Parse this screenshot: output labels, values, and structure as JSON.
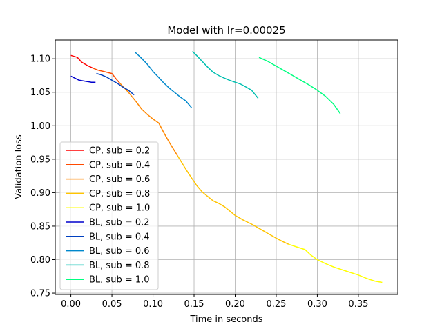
{
  "chart_data": {
    "type": "line",
    "title": "Model with lr=0.00025",
    "xlabel": "Time in seconds",
    "ylabel": "Validation loss",
    "xlim": [
      -0.019,
      0.398
    ],
    "ylim": [
      0.748,
      1.128
    ],
    "xticks": [
      0.0,
      0.05,
      0.1,
      0.15,
      0.2,
      0.25,
      0.3,
      0.35
    ],
    "xtick_labels": [
      "0.00",
      "0.05",
      "0.10",
      "0.15",
      "0.20",
      "0.25",
      "0.30",
      "0.35"
    ],
    "yticks": [
      0.75,
      0.8,
      0.85,
      0.9,
      0.95,
      1.0,
      1.05,
      1.1
    ],
    "ytick_labels": [
      "0.75",
      "0.80",
      "0.85",
      "0.90",
      "0.95",
      "1.00",
      "1.05",
      "1.10"
    ],
    "grid": true,
    "legend_position": "lower-left",
    "series": [
      {
        "name": "CP, sub = 0.2",
        "color": "#ff0000",
        "x": [
          0.0,
          0.008,
          0.013,
          0.02,
          0.027
        ],
        "y": [
          1.105,
          1.102,
          1.095,
          1.09,
          1.086
        ]
      },
      {
        "name": "CP, sub = 0.4",
        "color": "#ff4a00",
        "x": [
          0.027,
          0.033,
          0.04,
          0.05,
          0.055,
          0.06
        ],
        "y": [
          1.086,
          1.083,
          1.081,
          1.078,
          1.07,
          1.063
        ]
      },
      {
        "name": "CP, sub = 0.6",
        "color": "#ff8700",
        "x": [
          0.06,
          0.07,
          0.08,
          0.086,
          0.093,
          0.1,
          0.107,
          0.113,
          0.12,
          0.13
        ],
        "y": [
          1.063,
          1.05,
          1.035,
          1.025,
          1.017,
          1.01,
          1.004,
          0.99,
          0.975,
          0.955
        ]
      },
      {
        "name": "CP, sub = 0.8",
        "color": "#ffc400",
        "x": [
          0.13,
          0.14,
          0.147,
          0.153,
          0.16,
          0.167,
          0.173,
          0.18,
          0.187,
          0.193,
          0.2,
          0.21,
          0.22,
          0.23,
          0.24,
          0.25,
          0.258,
          0.265
        ],
        "y": [
          0.955,
          0.935,
          0.922,
          0.911,
          0.901,
          0.894,
          0.888,
          0.884,
          0.879,
          0.873,
          0.866,
          0.859,
          0.853,
          0.846,
          0.839,
          0.832,
          0.827,
          0.823
        ]
      },
      {
        "name": "CP, sub = 1.0",
        "color": "#ffff00",
        "x": [
          0.265,
          0.275,
          0.285,
          0.292,
          0.3,
          0.31,
          0.32,
          0.33,
          0.34,
          0.35,
          0.36,
          0.37,
          0.379
        ],
        "y": [
          0.823,
          0.819,
          0.815,
          0.807,
          0.8,
          0.794,
          0.789,
          0.785,
          0.781,
          0.777,
          0.772,
          0.768,
          0.766
        ]
      },
      {
        "name": "BL, sub = 0.2",
        "color": "#0000cc",
        "x": [
          0.0,
          0.005,
          0.01,
          0.015,
          0.02,
          0.025,
          0.03
        ],
        "y": [
          1.074,
          1.071,
          1.068,
          1.067,
          1.066,
          1.065,
          1.065
        ]
      },
      {
        "name": "BL, sub = 0.4",
        "color": "#0040c0",
        "x": [
          0.031,
          0.037,
          0.043,
          0.05,
          0.057,
          0.063,
          0.07,
          0.077
        ],
        "y": [
          1.078,
          1.076,
          1.073,
          1.068,
          1.063,
          1.058,
          1.053,
          1.046
        ]
      },
      {
        "name": "BL, sub = 0.6",
        "color": "#0088cc",
        "x": [
          0.078,
          0.085,
          0.093,
          0.1,
          0.107,
          0.113,
          0.12,
          0.127,
          0.133,
          0.14,
          0.147
        ],
        "y": [
          1.11,
          1.102,
          1.092,
          1.081,
          1.072,
          1.064,
          1.056,
          1.049,
          1.043,
          1.037,
          1.027
        ]
      },
      {
        "name": "BL, sub = 0.8",
        "color": "#00bfb0",
        "x": [
          0.148,
          0.153,
          0.16,
          0.167,
          0.173,
          0.18,
          0.187,
          0.193,
          0.2,
          0.207,
          0.213,
          0.22,
          0.228
        ],
        "y": [
          1.111,
          1.105,
          1.096,
          1.087,
          1.08,
          1.075,
          1.071,
          1.068,
          1.065,
          1.062,
          1.058,
          1.053,
          1.041
        ]
      },
      {
        "name": "BL, sub = 1.0",
        "color": "#00ff80",
        "x": [
          0.229,
          0.24,
          0.25,
          0.26,
          0.27,
          0.28,
          0.29,
          0.3,
          0.31,
          0.32,
          0.328
        ],
        "y": [
          1.102,
          1.096,
          1.089,
          1.082,
          1.075,
          1.068,
          1.061,
          1.053,
          1.044,
          1.032,
          1.018
        ]
      }
    ]
  }
}
